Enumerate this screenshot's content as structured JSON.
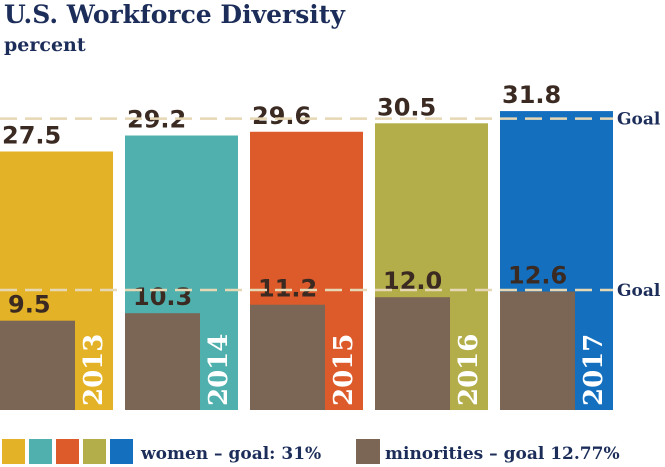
{
  "chart_data": {
    "type": "bar",
    "title": "U.S. Workforce Diversity",
    "subtitle": "percent",
    "categories": [
      "2013",
      "2014",
      "2015",
      "2016",
      "2017"
    ],
    "series": [
      {
        "name": "women – goal: 31%",
        "values": [
          27.5,
          29.2,
          29.6,
          30.5,
          31.8
        ],
        "colors": [
          "#e3b226",
          "#4fb0ad",
          "#dd5a2a",
          "#b3ad4a",
          "#1470bf"
        ]
      },
      {
        "name": "minorities – goal 12.77%",
        "values": [
          9.5,
          10.3,
          11.2,
          12.0,
          12.6
        ],
        "color": "#7b6656"
      }
    ],
    "value_labels": {
      "women": [
        "27.5",
        "29.2",
        "29.6",
        "30.5",
        "31.8"
      ],
      "minorities": [
        "9.5",
        "10.3",
        "11.2",
        "12.0",
        "12.6"
      ]
    },
    "goals": [
      {
        "label": "Goal",
        "value": 31
      },
      {
        "label": "Goal",
        "value": 12.77
      }
    ],
    "goal_line_color": "#e6d8b4",
    "legend_position": "bottom"
  }
}
